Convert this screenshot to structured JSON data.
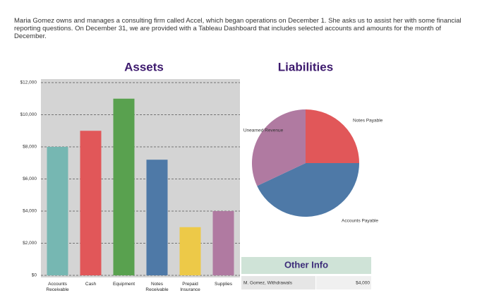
{
  "intro": "Maria Gomez owns and manages a consulting firm called Accel, which began operations on December 1. She asks us to assist her with some financial reporting questions. On December 31, we are provided with a Tableau Dashboard that includes selected accounts and amounts for the month of December.",
  "chart_data": [
    {
      "type": "bar",
      "title": "Assets",
      "categories": [
        "Accounts Receivable",
        "Cash",
        "Equipment",
        "Notes Receivable",
        "Prepaid Insurance",
        "Supplies"
      ],
      "values": [
        8000,
        9000,
        11000,
        7200,
        3000,
        4000
      ],
      "colors": [
        "#76b7b2",
        "#e15759",
        "#59a14f",
        "#4e79a7",
        "#edc948",
        "#b07aa1"
      ],
      "ylim": [
        0,
        12000
      ],
      "yticks": [
        {
          "value": 0,
          "label": "$0"
        },
        {
          "value": 2000,
          "label": "$2,000"
        },
        {
          "value": 4000,
          "label": "$4,000"
        },
        {
          "value": 6000,
          "label": "$6,000"
        },
        {
          "value": 8000,
          "label": "$8,000"
        },
        {
          "value": 10000,
          "label": "$10,000"
        },
        {
          "value": 12000,
          "label": "$12,000"
        }
      ],
      "grid": true
    },
    {
      "type": "pie",
      "title": "Liabilities",
      "categories": [
        "Notes Payable",
        "Accounts Payable",
        "Unearned Revenue"
      ],
      "values": [
        25,
        43,
        32
      ],
      "colors": [
        "#e15759",
        "#4e79a7",
        "#b07aa1"
      ]
    }
  ],
  "other_info": {
    "title": "Other Info",
    "rows": [
      [
        "M. Gomez, Withdrawals",
        "$4,000"
      ]
    ]
  }
}
